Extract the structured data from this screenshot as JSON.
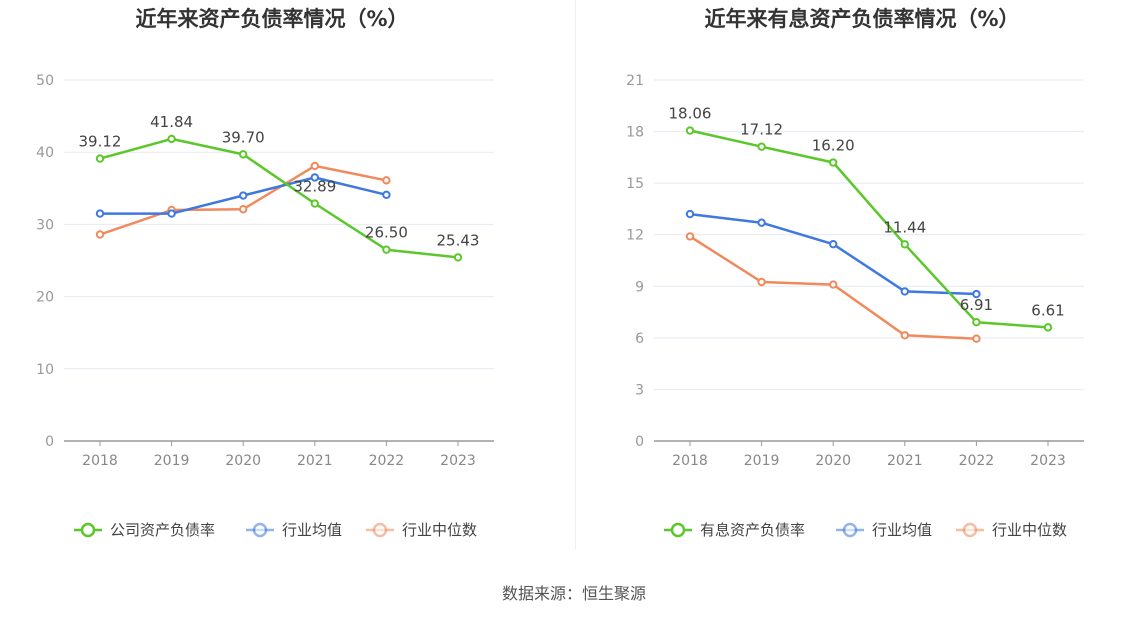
{
  "chart_data": [
    {
      "type": "line",
      "title": "近年来资产负债率情况（%）",
      "categories": [
        "2018",
        "2019",
        "2020",
        "2021",
        "2022",
        "2023"
      ],
      "ylim": [
        0,
        50
      ],
      "yticks": [
        0,
        10,
        20,
        30,
        40,
        50
      ],
      "grid": true,
      "legend_position": "bottom-center",
      "series": [
        {
          "name": "公司资产负债率",
          "color": "#5cc72b",
          "labeled": true,
          "values": [
            39.12,
            41.84,
            39.7,
            32.89,
            26.5,
            25.43
          ],
          "labels": [
            "39.12",
            "41.84",
            "39.70",
            "32.89",
            "26.50",
            "25.43"
          ]
        },
        {
          "name": "行业均值",
          "color": "#3e78e0",
          "labeled": false,
          "values": [
            31.5,
            31.5,
            34.0,
            36.5,
            34.1,
            null
          ]
        },
        {
          "name": "行业中位数",
          "color": "#f08a5d",
          "labeled": false,
          "values": [
            28.6,
            32.0,
            32.1,
            38.1,
            36.1,
            null
          ]
        }
      ]
    },
    {
      "type": "line",
      "title": "近年来有息资产负债率情况（%）",
      "categories": [
        "2018",
        "2019",
        "2020",
        "2021",
        "2022",
        "2023"
      ],
      "ylim": [
        0,
        21
      ],
      "yticks": [
        0,
        3,
        6,
        9,
        12,
        15,
        18,
        21
      ],
      "grid": true,
      "legend_position": "bottom-center",
      "series": [
        {
          "name": "有息资产负债率",
          "color": "#5cc72b",
          "labeled": true,
          "values": [
            18.06,
            17.12,
            16.2,
            11.44,
            6.91,
            6.61
          ],
          "labels": [
            "18.06",
            "17.12",
            "16.20",
            "11.44",
            "6.91",
            "6.61"
          ]
        },
        {
          "name": "行业均值",
          "color": "#3e78e0",
          "labeled": false,
          "values": [
            13.2,
            12.7,
            11.45,
            8.7,
            8.55,
            null
          ]
        },
        {
          "name": "行业中位数",
          "color": "#f08a5d",
          "labeled": false,
          "values": [
            11.9,
            9.25,
            9.1,
            6.15,
            5.95,
            null
          ]
        }
      ]
    }
  ],
  "footer": {
    "source": "数据来源：恒生聚源"
  }
}
